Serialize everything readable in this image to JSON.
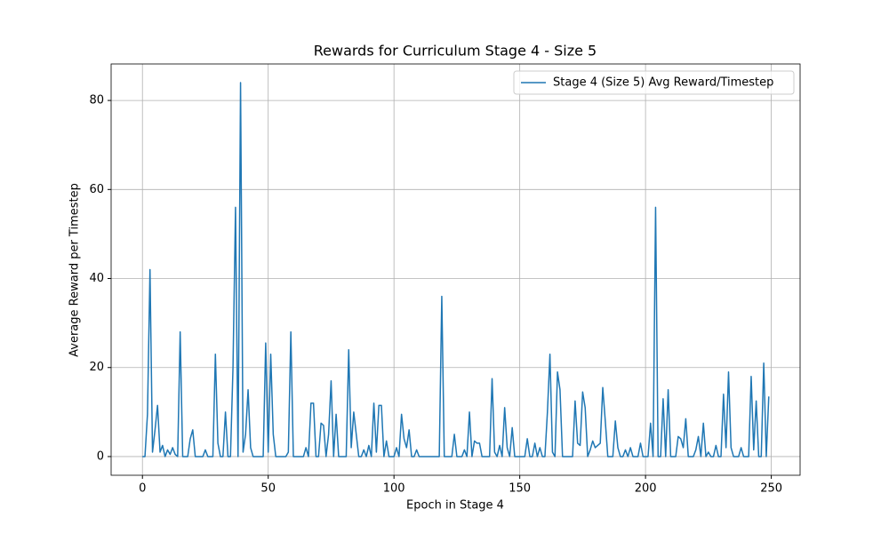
{
  "chart_data": {
    "type": "line",
    "title": "Rewards for Curriculum Stage 4 - Size 5",
    "x_label": "Epoch in Stage 4",
    "y_label": "Average Reward per Timestep",
    "x": [
      0,
      1,
      2,
      3,
      4,
      5,
      6,
      7,
      8,
      9,
      10,
      11,
      12,
      13,
      14,
      15,
      16,
      17,
      18,
      19,
      20,
      21,
      22,
      23,
      24,
      25,
      26,
      27,
      28,
      29,
      30,
      31,
      32,
      33,
      34,
      35,
      36,
      37,
      38,
      39,
      40,
      41,
      42,
      43,
      44,
      45,
      46,
      47,
      48,
      49,
      50,
      51,
      52,
      53,
      54,
      55,
      56,
      57,
      58,
      59,
      60,
      61,
      62,
      63,
      64,
      65,
      66,
      67,
      68,
      69,
      70,
      71,
      72,
      73,
      74,
      75,
      76,
      77,
      78,
      79,
      80,
      81,
      82,
      83,
      84,
      85,
      86,
      87,
      88,
      89,
      90,
      91,
      92,
      93,
      94,
      95,
      96,
      97,
      98,
      99,
      100,
      101,
      102,
      103,
      104,
      105,
      106,
      107,
      108,
      109,
      110,
      111,
      112,
      113,
      114,
      115,
      116,
      117,
      118,
      119,
      120,
      121,
      122,
      123,
      124,
      125,
      126,
      127,
      128,
      129,
      130,
      131,
      132,
      133,
      134,
      135,
      136,
      137,
      138,
      139,
      140,
      141,
      142,
      143,
      144,
      145,
      146,
      147,
      148,
      149,
      150,
      151,
      152,
      153,
      154,
      155,
      156,
      157,
      158,
      159,
      160,
      161,
      162,
      163,
      164,
      165,
      166,
      167,
      168,
      169,
      170,
      171,
      172,
      173,
      174,
      175,
      176,
      177,
      178,
      179,
      180,
      181,
      182,
      183,
      184,
      185,
      186,
      187,
      188,
      189,
      190,
      191,
      192,
      193,
      194,
      195,
      196,
      197,
      198,
      199,
      200,
      201,
      202,
      203,
      204,
      205,
      206,
      207,
      208,
      209,
      210,
      211,
      212,
      213,
      214,
      215,
      216,
      217,
      218,
      219,
      220,
      221,
      222,
      223,
      224,
      225,
      226,
      227,
      228,
      229,
      230,
      231,
      232,
      233,
      234,
      235,
      236,
      237,
      238,
      239,
      240,
      241,
      242,
      243,
      244,
      245,
      246,
      247,
      248,
      249
    ],
    "series": [
      {
        "name": "Stage 4 (Size 5) Avg Reward/Timestep",
        "color": "#1f77b4",
        "values": [
          0,
          0,
          9.5,
          42,
          1,
          6,
          11.5,
          1,
          2.5,
          0,
          1.5,
          0.5,
          2,
          0.5,
          0,
          28,
          0,
          0,
          0,
          4,
          6,
          0,
          0,
          0,
          0,
          1.5,
          0,
          0,
          0,
          23,
          3,
          0,
          0,
          10,
          0,
          0,
          20,
          56,
          0,
          84,
          1,
          5,
          15,
          2,
          0,
          0,
          0,
          0,
          0,
          25.5,
          1,
          23,
          5,
          0,
          0,
          0,
          0,
          0,
          1,
          28,
          0,
          0,
          0,
          0,
          0,
          2,
          0,
          12,
          12,
          0,
          0,
          7.5,
          7,
          0,
          5,
          17,
          0,
          9.5,
          0,
          0,
          0,
          0,
          24,
          2,
          10,
          5,
          0,
          0,
          1.5,
          0,
          2.5,
          0,
          12,
          1,
          11.5,
          11.5,
          0,
          3.5,
          0,
          0,
          0,
          2,
          0,
          9.5,
          4,
          2,
          6,
          0,
          0,
          1.5,
          0,
          0,
          0,
          0,
          0,
          0,
          0,
          0,
          0,
          36,
          0,
          0,
          0,
          0,
          5,
          0,
          0,
          0,
          1.5,
          0,
          10,
          0,
          3.5,
          3,
          3,
          0,
          0,
          0,
          0,
          17.5,
          1,
          0,
          2.5,
          0,
          11,
          2,
          0,
          6.5,
          0,
          0,
          0,
          0,
          0,
          4,
          0,
          0,
          3,
          0,
          2,
          0,
          0,
          10,
          23,
          1,
          0,
          19,
          15,
          0,
          0,
          0,
          0,
          0,
          12.5,
          3,
          2.5,
          14.5,
          11,
          0,
          1.5,
          3.5,
          2,
          2.5,
          3,
          15.5,
          8,
          0,
          0,
          0,
          8,
          2,
          0,
          0,
          1.5,
          0,
          2,
          0,
          0,
          0,
          3,
          0,
          0,
          0,
          7.5,
          0,
          56,
          0,
          0,
          13,
          0,
          15,
          0,
          0,
          0,
          4.5,
          4,
          2,
          8.5,
          0,
          0,
          0,
          1.5,
          4.5,
          0,
          7.5,
          0,
          1,
          0,
          0,
          2.5,
          0,
          0,
          14,
          2,
          19,
          2,
          0,
          0,
          0,
          2,
          0,
          0,
          0,
          18,
          1.5,
          12.5,
          0,
          0,
          21,
          0,
          13.5
        ]
      }
    ],
    "xlim": [
      -12.45,
      261.45
    ],
    "ylim": [
      -4.2,
      88.2
    ],
    "xticks": [
      0,
      50,
      100,
      150,
      200,
      250
    ],
    "yticks": [
      0,
      20,
      40,
      60,
      80
    ],
    "grid": true,
    "legend": "upper right"
  }
}
